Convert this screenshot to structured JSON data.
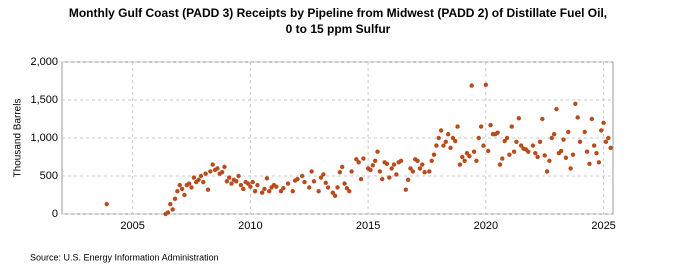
{
  "chart_data": {
    "type": "scatter",
    "title": [
      "Monthly Gulf Coast (PADD 3) Receipts by Pipeline from Midwest (PADD 2) of Distillate Fuel Oil,",
      "0 to 15 ppm Sulfur"
    ],
    "y_label": "Thousand Barrels",
    "source": "Source: U.S. Energy Information Administration",
    "color": "#b84c1c",
    "grid": true,
    "xlim": [
      2002,
      2025.4
    ],
    "xticks": [
      2005,
      2010,
      2015,
      2020,
      2025
    ],
    "ylim": [
      0,
      2000
    ],
    "yticks": [
      0,
      500,
      {
        "value": 1000,
        "label": "1,000"
      },
      {
        "value": 1500,
        "label": "1,500"
      },
      {
        "value": 2000,
        "label": "2,000"
      }
    ],
    "x": [
      2003.9,
      2006.4,
      2006.5,
      2006.6,
      2006.7,
      2006.8,
      2006.9,
      2007.0,
      2007.1,
      2007.2,
      2007.3,
      2007.4,
      2007.5,
      2007.6,
      2007.7,
      2007.8,
      2007.9,
      2008.0,
      2008.1,
      2008.2,
      2008.3,
      2008.4,
      2008.5,
      2008.6,
      2008.7,
      2008.8,
      2008.9,
      2009.0,
      2009.1,
      2009.2,
      2009.3,
      2009.4,
      2009.5,
      2009.6,
      2009.7,
      2009.8,
      2009.9,
      2010.0,
      2010.1,
      2010.2,
      2010.3,
      2010.5,
      2010.6,
      2010.7,
      2010.8,
      2010.9,
      2011.0,
      2011.1,
      2011.3,
      2011.4,
      2011.6,
      2011.8,
      2011.9,
      2012.0,
      2012.2,
      2012.3,
      2012.5,
      2012.6,
      2012.7,
      2012.9,
      2013.0,
      2013.1,
      2013.2,
      2013.3,
      2013.5,
      2013.6,
      2013.7,
      2013.8,
      2013.9,
      2014.0,
      2014.1,
      2014.2,
      2014.3,
      2014.5,
      2014.6,
      2014.7,
      2014.8,
      2015.0,
      2015.1,
      2015.2,
      2015.3,
      2015.4,
      2015.5,
      2015.6,
      2015.7,
      2015.8,
      2015.9,
      2016.0,
      2016.1,
      2016.2,
      2016.3,
      2016.4,
      2016.6,
      2016.7,
      2016.8,
      2016.9,
      2017.0,
      2017.1,
      2017.2,
      2017.3,
      2017.4,
      2017.6,
      2017.7,
      2017.8,
      2017.9,
      2018.0,
      2018.1,
      2018.2,
      2018.3,
      2018.4,
      2018.5,
      2018.6,
      2018.7,
      2018.8,
      2018.9,
      2019.0,
      2019.1,
      2019.2,
      2019.3,
      2019.4,
      2019.5,
      2019.6,
      2019.7,
      2019.8,
      2019.9,
      2020.0,
      2020.1,
      2020.2,
      2020.3,
      2020.4,
      2020.5,
      2020.6,
      2020.7,
      2020.8,
      2020.9,
      2021.0,
      2021.1,
      2021.2,
      2021.3,
      2021.4,
      2021.5,
      2021.6,
      2021.7,
      2021.8,
      2022.0,
      2022.1,
      2022.2,
      2022.3,
      2022.4,
      2022.5,
      2022.6,
      2022.7,
      2022.8,
      2022.9,
      2023.0,
      2023.1,
      2023.2,
      2023.3,
      2023.4,
      2023.5,
      2023.6,
      2023.7,
      2023.8,
      2023.9,
      2024.0,
      2024.2,
      2024.3,
      2024.4,
      2024.5,
      2024.6,
      2024.7,
      2024.8,
      2024.9,
      2025.0,
      2025.1,
      2025.2,
      2025.3
    ],
    "values": [
      130,
      0,
      20,
      130,
      60,
      200,
      300,
      380,
      330,
      250,
      380,
      400,
      350,
      480,
      420,
      450,
      500,
      420,
      530,
      320,
      560,
      650,
      580,
      600,
      530,
      550,
      620,
      430,
      480,
      400,
      450,
      430,
      500,
      380,
      330,
      420,
      400,
      360,
      420,
      300,
      380,
      280,
      330,
      470,
      300,
      350,
      380,
      360,
      300,
      340,
      400,
      300,
      440,
      460,
      500,
      420,
      350,
      560,
      430,
      300,
      480,
      520,
      410,
      350,
      280,
      240,
      350,
      550,
      620,
      400,
      340,
      300,
      560,
      720,
      680,
      460,
      730,
      600,
      580,
      640,
      700,
      820,
      560,
      460,
      680,
      660,
      480,
      600,
      650,
      520,
      680,
      700,
      320,
      450,
      600,
      560,
      720,
      700,
      600,
      650,
      550,
      560,
      700,
      780,
      900,
      1000,
      1100,
      900,
      950,
      1050,
      870,
      1000,
      960,
      1150,
      650,
      750,
      700,
      800,
      760,
      1690,
      820,
      700,
      1000,
      1150,
      900,
      1700,
      830,
      1170,
      1050,
      1050,
      1070,
      650,
      730,
      960,
      1000,
      780,
      1150,
      820,
      950,
      1260,
      900,
      860,
      850,
      820,
      900,
      800,
      750,
      950,
      1250,
      770,
      560,
      700,
      1000,
      1050,
      1380,
      800,
      830,
      980,
      740,
      1080,
      600,
      780,
      1450,
      1270,
      950,
      1080,
      820,
      660,
      1250,
      900,
      800,
      680,
      1100,
      1200,
      950,
      1000,
      870
    ]
  }
}
